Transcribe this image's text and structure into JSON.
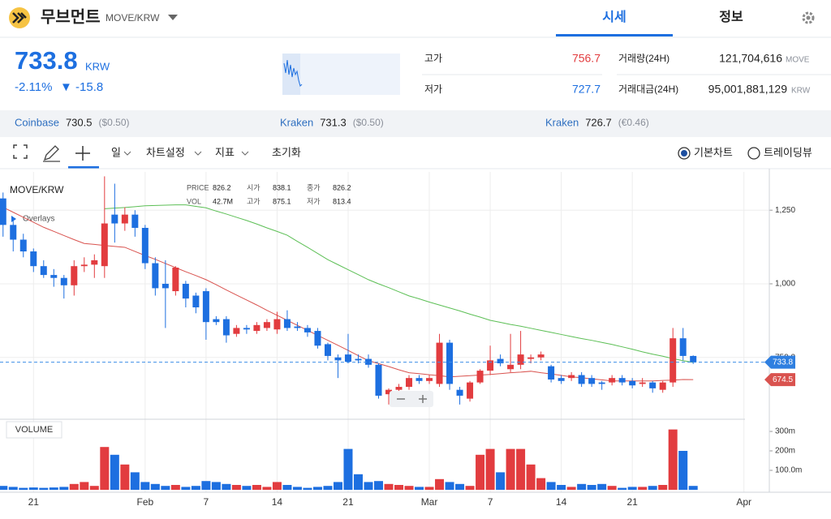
{
  "header": {
    "coin_name": "무브먼트",
    "pair": "MOVE/KRW",
    "tabs": [
      "시세",
      "정보"
    ]
  },
  "price": {
    "current": "733.8",
    "unit": "KRW",
    "change_rate": "-2.11%",
    "change_value": "▼ -15.8"
  },
  "stats": {
    "high_label": "고가",
    "high": "756.7",
    "low_label": "저가",
    "low": "727.7",
    "volume_label": "거래량(24H)",
    "volume": "121,704,616",
    "volume_unit": "MOVE",
    "amount_label": "거래대금(24H)",
    "amount": "95,001,881,129",
    "amount_unit": "KRW"
  },
  "exchanges": [
    {
      "name": "Coinbase",
      "price": "730.5",
      "converted": "($0.50)"
    },
    {
      "name": "Kraken",
      "price": "731.3",
      "converted": "($0.50)"
    },
    {
      "name": "Kraken",
      "price": "726.7",
      "converted": "(€0.46)"
    }
  ],
  "toolbar": {
    "interval": "일",
    "settings": "차트설정",
    "indicators": "지표",
    "reset": "초기화",
    "modes": [
      "기본차트",
      "트레이딩뷰"
    ]
  },
  "chart_data": {
    "type": "candlestick",
    "title": "MOVE/KRW",
    "overlays_label": "Overlays",
    "info": [
      {
        "label": "PRICE",
        "value": "826.2"
      },
      {
        "label": "시가",
        "value": "838.1"
      },
      {
        "label": "종가",
        "value": "826.2"
      },
      {
        "label": "VOL",
        "value": "42.7M"
      },
      {
        "label": "고가",
        "value": "875.1"
      },
      {
        "label": "저가",
        "value": "813.4"
      }
    ],
    "x": [
      0,
      1,
      2,
      3,
      4,
      5,
      6,
      7,
      8,
      9,
      10,
      11,
      12,
      13,
      14,
      15,
      16,
      17,
      18,
      19,
      20,
      21,
      22,
      23,
      24,
      25,
      26,
      27,
      28,
      29,
      30,
      31,
      32,
      33,
      34,
      35,
      36,
      37,
      38,
      39,
      40,
      41,
      42,
      43,
      44,
      45,
      46,
      47,
      48,
      49,
      50,
      51,
      52,
      53,
      54,
      55,
      56,
      57,
      58,
      59,
      60,
      61,
      62,
      63,
      64,
      65,
      66,
      67,
      68
    ],
    "xlim": [
      -0.3,
      75.5
    ],
    "xticks": [
      {
        "value": 3,
        "label": "21"
      },
      {
        "value": 14,
        "label": "Feb"
      },
      {
        "value": 20,
        "label": "7"
      },
      {
        "value": 27,
        "label": "14"
      },
      {
        "value": 34,
        "label": "21"
      },
      {
        "value": 42,
        "label": "Mar"
      },
      {
        "value": 48,
        "label": "7"
      },
      {
        "value": 55,
        "label": "14"
      },
      {
        "value": 62,
        "label": "21"
      },
      {
        "value": 73,
        "label": "Apr"
      }
    ],
    "ylim": [
      540,
      1380
    ],
    "yticks": [
      {
        "value": 1250,
        "label": "1,250"
      },
      {
        "value": 1000,
        "label": "1,000"
      },
      {
        "value": 750,
        "label": "750.0"
      }
    ],
    "grid": true,
    "up_color": "#e23c3f",
    "down_color": "#1d6fe0",
    "open": [
      1290,
      1200,
      1150,
      1110,
      1060,
      1030,
      1020,
      995,
      1060,
      1065,
      1060,
      1235,
      1205,
      1235,
      1190,
      1070,
      1000,
      975,
      1000,
      960,
      975,
      880,
      880,
      830,
      850,
      840,
      850,
      845,
      880,
      855,
      850,
      840,
      795,
      750,
      760,
      745,
      745,
      725,
      625,
      640,
      650,
      680,
      670,
      660,
      800,
      640,
      610,
      665,
      705,
      745,
      710,
      725,
      745,
      750,
      720,
      680,
      680,
      690,
      680,
      665,
      665,
      680,
      670,
      660,
      665,
      640,
      665,
      815,
      755
    ],
    "high": [
      1310,
      1220,
      1170,
      1120,
      1080,
      1050,
      1030,
      1080,
      1090,
      1100,
      1365,
      1340,
      1260,
      1250,
      1200,
      1090,
      1080,
      1060,
      1010,
      970,
      985,
      890,
      890,
      860,
      860,
      870,
      880,
      905,
      910,
      870,
      860,
      850,
      800,
      760,
      830,
      760,
      760,
      730,
      645,
      660,
      690,
      690,
      690,
      830,
      810,
      650,
      670,
      710,
      790,
      760,
      830,
      840,
      760,
      770,
      725,
      690,
      700,
      700,
      690,
      670,
      690,
      690,
      680,
      680,
      670,
      670,
      850,
      850,
      757
    ],
    "low": [
      1160,
      1110,
      1090,
      1040,
      1020,
      990,
      950,
      960,
      1040,
      1020,
      1020,
      1140,
      1180,
      1160,
      1050,
      960,
      850,
      960,
      920,
      900,
      810,
      860,
      800,
      820,
      830,
      830,
      840,
      830,
      840,
      840,
      820,
      780,
      740,
      680,
      730,
      730,
      715,
      610,
      590,
      630,
      640,
      660,
      660,
      650,
      640,
      590,
      600,
      660,
      690,
      720,
      700,
      710,
      730,
      740,
      665,
      660,
      670,
      650,
      650,
      640,
      655,
      655,
      645,
      650,
      630,
      630,
      650,
      740,
      728
    ],
    "close": [
      1200,
      1150,
      1110,
      1060,
      1030,
      1020,
      995,
      1060,
      1065,
      1080,
      1205,
      1205,
      1235,
      1190,
      1070,
      985,
      985,
      1055,
      950,
      920,
      870,
      870,
      825,
      850,
      845,
      860,
      870,
      880,
      850,
      850,
      835,
      790,
      755,
      740,
      735,
      740,
      725,
      620,
      640,
      650,
      680,
      670,
      680,
      800,
      660,
      620,
      665,
      705,
      740,
      730,
      725,
      760,
      750,
      760,
      675,
      670,
      690,
      660,
      660,
      660,
      680,
      665,
      655,
      665,
      645,
      665,
      815,
      755,
      733.8
    ],
    "moving_averages": [
      {
        "color": "#5cbf55",
        "values": [
          null,
          null,
          null,
          null,
          null,
          null,
          null,
          null,
          null,
          null,
          1255,
          1257,
          1259,
          1262,
          1265,
          1266,
          1267,
          1268,
          1268,
          1263,
          1258,
          1247,
          1237,
          1226,
          1215,
          1203,
          1190,
          1178,
          1165,
          1144,
          1124,
          1103,
          1082,
          1065,
          1048,
          1031,
          1014,
          1000,
          987,
          973,
          959,
          949,
          938,
          928,
          918,
          908,
          897,
          887,
          876,
          869,
          862,
          856,
          849,
          842,
          835,
          828,
          821,
          814,
          808,
          801,
          794,
          786,
          778,
          769,
          761,
          754,
          746,
          739,
          733
        ]
      },
      {
        "color": "#d9534f",
        "values": [
          1260,
          1243,
          1226,
          1209,
          1192,
          1178,
          1164,
          1150,
          1137,
          1134,
          1130,
          1127,
          1124,
          1110,
          1096,
          1083,
          1069,
          1055,
          1041,
          1028,
          1014,
          997,
          979,
          962,
          945,
          928,
          910,
          893,
          876,
          859,
          842,
          825,
          808,
          791,
          774,
          756,
          739,
          729,
          719,
          708,
          698,
          695,
          691,
          688,
          684,
          686,
          688,
          690,
          692,
          695,
          698,
          700,
          703,
          698,
          694,
          689,
          684,
          681,
          677,
          674,
          670,
          670,
          670,
          670,
          670,
          672,
          673,
          675,
          674.5
        ]
      }
    ],
    "volume": {
      "label": "VOLUME",
      "values": [
        20,
        15,
        10,
        12,
        10,
        12,
        15,
        30,
        40,
        20,
        220,
        180,
        130,
        90,
        40,
        30,
        20,
        25,
        15,
        20,
        45,
        40,
        30,
        25,
        20,
        25,
        15,
        40,
        25,
        15,
        10,
        15,
        20,
        40,
        210,
        80,
        40,
        45,
        30,
        25,
        20,
        15,
        15,
        55,
        40,
        30,
        20,
        180,
        210,
        90,
        210,
        210,
        130,
        60,
        40,
        25,
        15,
        30,
        25,
        30,
        20,
        10,
        15,
        15,
        20,
        25,
        310,
        200,
        20
      ],
      "ylim": [
        0,
        350
      ],
      "yticks": [
        {
          "value": 300,
          "label": "300m"
        },
        {
          "value": 200,
          "label": "200m"
        },
        {
          "value": 100,
          "label": "100.0m"
        }
      ]
    }
  }
}
